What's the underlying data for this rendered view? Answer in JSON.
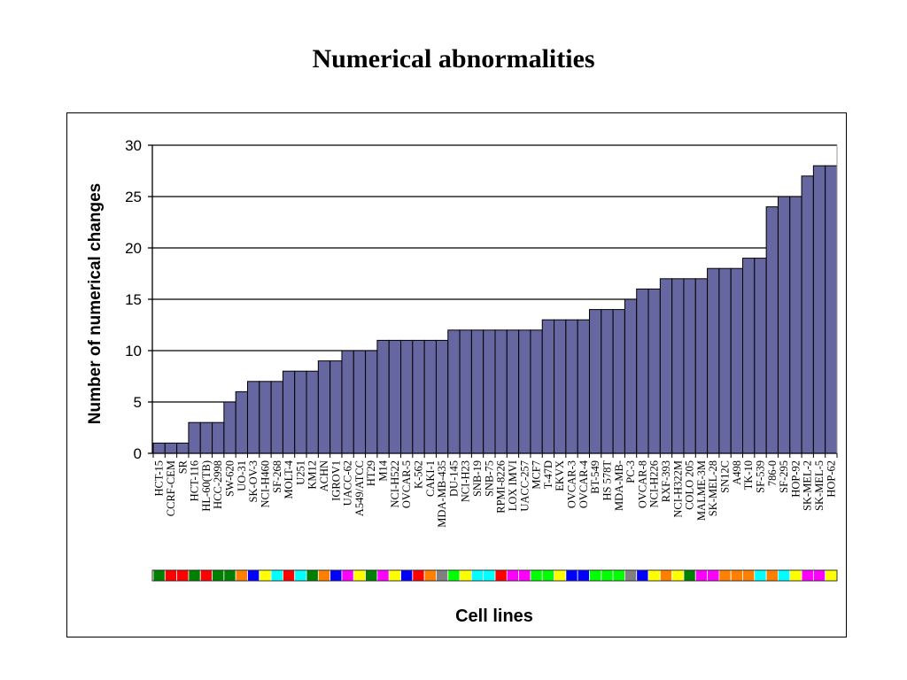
{
  "page_title": "Numerical abnormalities",
  "chart_data": {
    "type": "bar",
    "ylabel": "Number of numerical changes",
    "xlabel": "Cell lines",
    "ylim": [
      0,
      30
    ],
    "yticks": [
      0,
      5,
      10,
      15,
      20,
      25,
      30
    ],
    "grid": "horizontal",
    "bar_color": "#6666a0",
    "categories": [
      "HCT-15",
      "CCRF-CEM",
      "SR",
      "HCT-116",
      "HL-60(TB)",
      "HCC-2998",
      "SW-620",
      "UO-31",
      "SK-OV-3",
      "NCI-H460",
      "SF-268",
      "MOLT-4",
      "U251",
      "KM12",
      "ACHN",
      "IGROV1",
      "UACC-62",
      "A549/ATCC",
      "HT29",
      "M14",
      "NCI-H522",
      "OVCAR-5",
      "K-562",
      "CAKI-1",
      "MDA-MB-435",
      "DU-145",
      "NCI-H23",
      "SNB-19",
      "SNB-75",
      "RPMI-8226",
      "LOX IMVI",
      "UACC-257",
      "MCF7",
      "T-47D",
      "EKVX",
      "OVCAR-3",
      "OVCAR-4",
      "BT-549",
      "HS 578T",
      "MDA-MB-",
      "PC-3",
      "OVCAR-8",
      "NCI-H226",
      "RXF-393",
      "NCI-H322M",
      "COLO 205",
      "MALME-3M",
      "SK-MEL-28",
      "SN12C",
      "A498",
      "TK-10",
      "SF-539",
      "786-0",
      "SF-295",
      "HOP-92",
      "SK-MEL-2",
      "SK-MEL-5",
      "HOP-62"
    ],
    "values": [
      1,
      1,
      1,
      3,
      3,
      3,
      5,
      6,
      7,
      7,
      7,
      8,
      8,
      8,
      9,
      9,
      10,
      10,
      10,
      11,
      11,
      11,
      11,
      11,
      11,
      12,
      12,
      12,
      12,
      12,
      12,
      12,
      12,
      13,
      13,
      13,
      13,
      14,
      14,
      14,
      15,
      16,
      16,
      17,
      17,
      17,
      17,
      18,
      18,
      18,
      19,
      19,
      24,
      25,
      25,
      27,
      28,
      28
    ],
    "strip_colors": [
      "#008000",
      "#ff0000",
      "#ff0000",
      "#008000",
      "#ff0000",
      "#008000",
      "#008000",
      "#ff8000",
      "#0000ff",
      "#ffff00",
      "#00ffff",
      "#ff0000",
      "#00ffff",
      "#008000",
      "#ff8000",
      "#0000ff",
      "#ff00ff",
      "#ffff00",
      "#008000",
      "#ff00ff",
      "#ffff00",
      "#0000ff",
      "#ff0000",
      "#ff8000",
      "#808080",
      "#00ff00",
      "#ffff00",
      "#00ffff",
      "#00ffff",
      "#ff0000",
      "#ff00ff",
      "#ff00ff",
      "#00ff00",
      "#00ff00",
      "#ffff00",
      "#0000ff",
      "#0000ff",
      "#00ff00",
      "#00ff00",
      "#00ff00",
      "#808080",
      "#0000ff",
      "#ffff00",
      "#ff8000",
      "#ffff00",
      "#008000",
      "#ff00ff",
      "#ff00ff",
      "#ff8000",
      "#ff8000",
      "#ff8000",
      "#00ffff",
      "#ff8000",
      "#00ffff",
      "#ffff00",
      "#ff00ff",
      "#ff00ff",
      "#ffff00"
    ]
  }
}
